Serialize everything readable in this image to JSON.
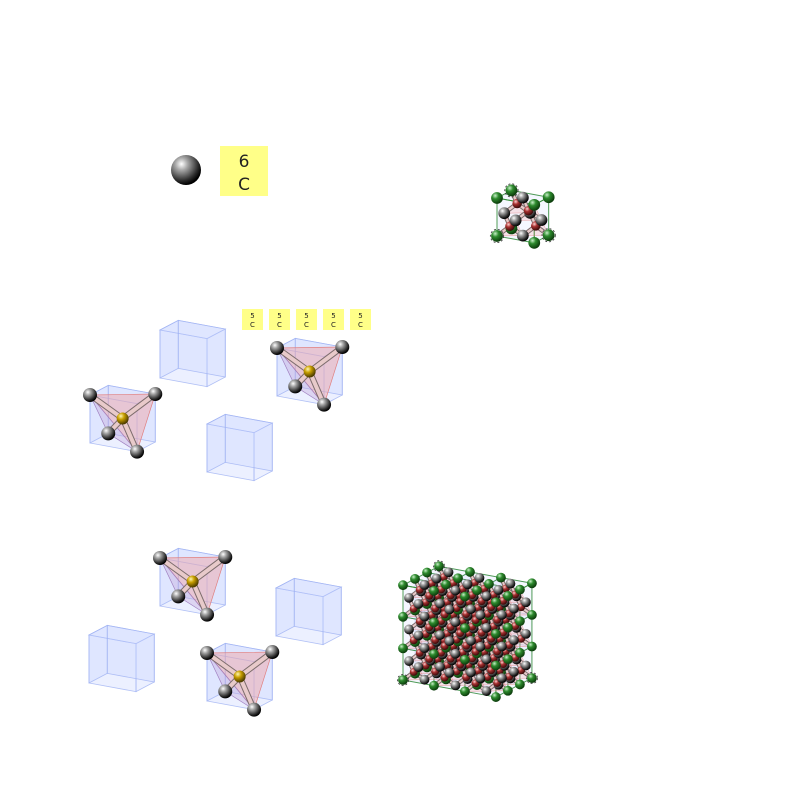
{
  "legend": {
    "atom_label": {
      "number": "6",
      "symbol": "C"
    }
  },
  "mini_labels": [
    {
      "number": "5",
      "symbol": "C"
    },
    {
      "number": "5",
      "symbol": "C"
    },
    {
      "number": "5",
      "symbol": "C"
    },
    {
      "number": "5",
      "symbol": "C"
    },
    {
      "number": "5",
      "symbol": "C"
    }
  ],
  "colors": {
    "atom": "#555555",
    "bond": "#d9aaaa",
    "cube_fill": "#dfe6ff",
    "cube_edge": "#a8b8f0",
    "tetra_fill": "#f4b8b8",
    "inner_atom": "#b08a00",
    "corner_atom": "#1f7a1f",
    "label_bg": "#ffff88"
  },
  "structure": {
    "name_hint": "",
    "unit_cells": 1,
    "supercell": [
      3,
      3,
      3
    ]
  }
}
